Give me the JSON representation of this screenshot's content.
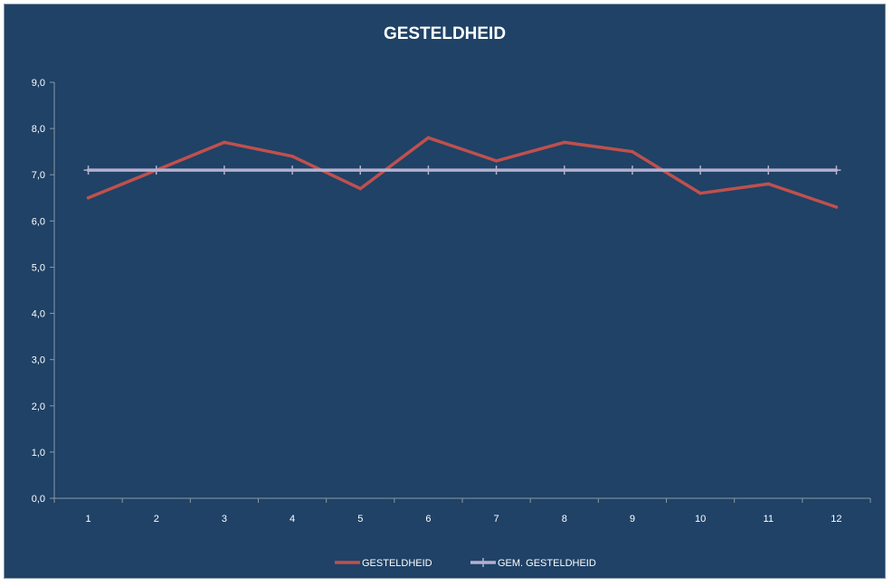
{
  "chart_data": {
    "type": "line",
    "title": "GESTELDHEID",
    "categories": [
      "1",
      "2",
      "3",
      "4",
      "5",
      "6",
      "7",
      "8",
      "9",
      "10",
      "11",
      "12"
    ],
    "y_ticks": [
      "0,0",
      "1,0",
      "2,0",
      "3,0",
      "4,0",
      "5,0",
      "6,0",
      "7,0",
      "8,0",
      "9,0"
    ],
    "ylim": [
      0,
      9
    ],
    "grid": false,
    "legend_position": "bottom",
    "series": [
      {
        "name": "GESTELDHEID",
        "color": "#c0504d",
        "marker": "none",
        "values": [
          6.5,
          7.1,
          7.7,
          7.4,
          6.7,
          7.8,
          7.3,
          7.7,
          7.5,
          6.6,
          6.8,
          6.3
        ]
      },
      {
        "name": "GEM. GESTELDHEID",
        "color": "#b4b0d0",
        "marker": "plus",
        "values": [
          7.1,
          7.1,
          7.1,
          7.1,
          7.1,
          7.1,
          7.1,
          7.1,
          7.1,
          7.1,
          7.1,
          7.1
        ]
      }
    ]
  }
}
